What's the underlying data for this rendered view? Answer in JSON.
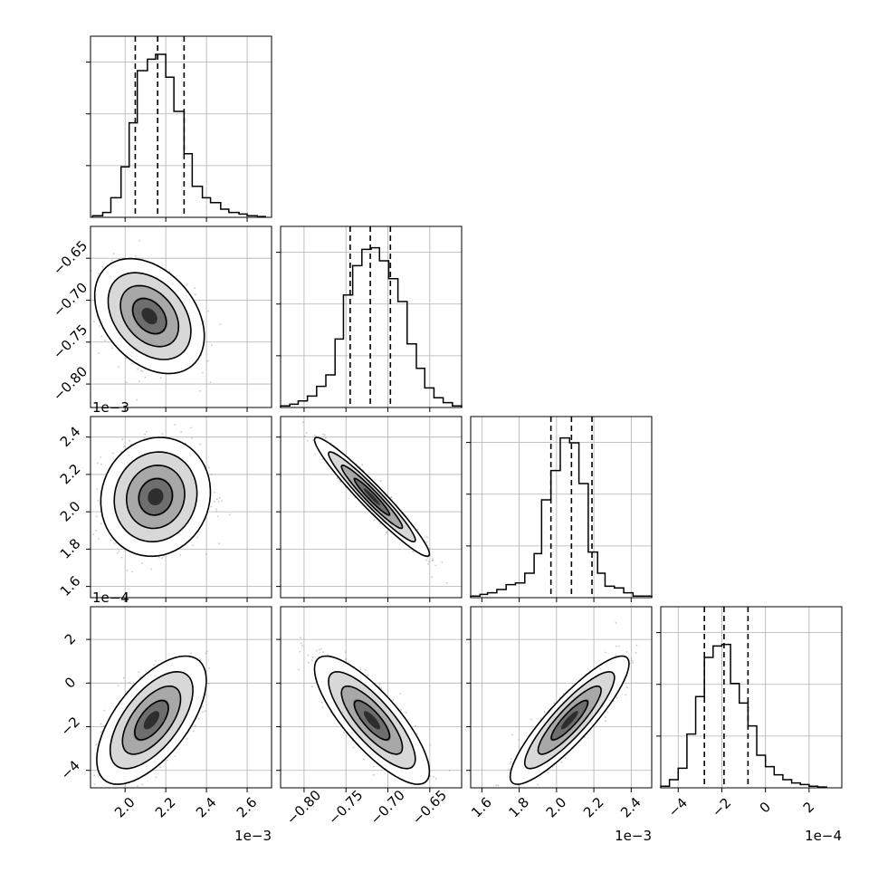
{
  "chart_data": {
    "type": "corner",
    "dims": [
      {
        "range": [
          0.00183,
          0.00272
        ],
        "ticks": [
          0.002,
          0.0022,
          0.0024,
          0.0026
        ],
        "tick_labels": [
          "2.0",
          "2.2",
          "2.4",
          "2.6"
        ],
        "offset": "1e−3",
        "quantiles": [
          0.00205,
          0.00216,
          0.00229
        ],
        "hist": {
          "edges": [
            0.00184,
            0.00189,
            0.00193,
            0.00198,
            0.00202,
            0.00206,
            0.00211,
            0.00215,
            0.0022,
            0.00224,
            0.00229,
            0.00233,
            0.00238,
            0.00242,
            0.00247,
            0.00251,
            0.00256,
            0.0026,
            0.00265,
            0.00269
          ],
          "counts": [
            0.01,
            0.03,
            0.12,
            0.31,
            0.58,
            0.9,
            0.97,
            1.0,
            0.86,
            0.65,
            0.39,
            0.19,
            0.12,
            0.09,
            0.05,
            0.03,
            0.02,
            0.01,
            0.005
          ]
        }
      },
      {
        "range": [
          -0.828,
          -0.612
        ],
        "ticks": [
          -0.8,
          -0.75,
          -0.7,
          -0.65
        ],
        "tick_labels": [
          "−0.80",
          "−0.75",
          "−0.70",
          "−0.65"
        ],
        "offset": "",
        "quantiles": [
          -0.745,
          -0.721,
          -0.697
        ],
        "hist": {
          "edges": [
            -0.828,
            -0.817,
            -0.807,
            -0.796,
            -0.785,
            -0.774,
            -0.763,
            -0.753,
            -0.742,
            -0.731,
            -0.72,
            -0.71,
            -0.699,
            -0.688,
            -0.677,
            -0.666,
            -0.656,
            -0.645,
            -0.634,
            -0.623,
            -0.612
          ],
          "counts": [
            0.01,
            0.02,
            0.04,
            0.07,
            0.13,
            0.2,
            0.42,
            0.69,
            0.87,
            0.97,
            0.98,
            0.9,
            0.79,
            0.65,
            0.39,
            0.24,
            0.12,
            0.06,
            0.03,
            0.01
          ]
        }
      },
      {
        "range": [
          0.00154,
          0.00251
        ],
        "ticks": [
          0.0016,
          0.0018,
          0.002,
          0.0022,
          0.0024
        ],
        "tick_labels": [
          "1.6",
          "1.8",
          "2.0",
          "2.2",
          "2.4"
        ],
        "offset": "1e−3",
        "quantiles": [
          0.00197,
          0.00208,
          0.00219
        ],
        "hist": {
          "edges": [
            0.00154,
            0.00159,
            0.00163,
            0.00168,
            0.00173,
            0.00178,
            0.00183,
            0.00188,
            0.00192,
            0.00197,
            0.00202,
            0.00207,
            0.00212,
            0.00217,
            0.00222,
            0.00226,
            0.00231,
            0.00236,
            0.00241,
            0.00246,
            0.00251
          ],
          "counts": [
            0.01,
            0.02,
            0.03,
            0.05,
            0.08,
            0.09,
            0.15,
            0.27,
            0.6,
            0.78,
            0.98,
            0.95,
            0.7,
            0.28,
            0.15,
            0.07,
            0.06,
            0.03,
            0.01,
            0.01
          ]
        }
      },
      {
        "range": [
          -0.00048,
          0.00035
        ],
        "ticks": [
          -0.0004,
          -0.0002,
          0,
          0.0002
        ],
        "tick_labels": [
          "−4",
          "−2",
          "0",
          "2"
        ],
        "offset": "1e−4",
        "quantiles": [
          -0.00028,
          -0.00019,
          -8e-05
        ],
        "hist": {
          "edges": [
            -0.00048,
            -0.00044,
            -0.0004,
            -0.00036,
            -0.00032,
            -0.00028,
            -0.00024,
            -0.0002,
            -0.00016,
            -0.00012,
            -8e-05,
            -4e-05,
            0.0,
            4e-05,
            8e-05,
            0.00012,
            0.00016,
            0.0002,
            0.00024,
            0.00028
          ],
          "counts": [
            0.01,
            0.05,
            0.12,
            0.33,
            0.56,
            0.8,
            0.87,
            0.88,
            0.64,
            0.52,
            0.38,
            0.2,
            0.13,
            0.08,
            0.05,
            0.03,
            0.02,
            0.01,
            0.005
          ]
        }
      }
    ],
    "pairs": [
      {
        "row": 1,
        "col": 0,
        "mean": [
          0.00212,
          -0.719
        ],
        "sd": [
          0.00011,
          0.028
        ],
        "rho": -0.35
      },
      {
        "row": 2,
        "col": 0,
        "mean": [
          0.00215,
          0.00208
        ],
        "sd": [
          0.00011,
          0.00013
        ],
        "rho": 0.08
      },
      {
        "row": 2,
        "col": 1,
        "mean": [
          -0.719,
          0.00208
        ],
        "sd": [
          0.028,
          0.00013
        ],
        "rho": -0.96
      },
      {
        "row": 3,
        "col": 0,
        "mean": [
          0.00213,
          -0.00017
        ],
        "sd": [
          0.00011,
          0.00012
        ],
        "rho": 0.62
      },
      {
        "row": 3,
        "col": 1,
        "mean": [
          -0.719,
          -0.00017
        ],
        "sd": [
          0.028,
          0.00012
        ],
        "rho": -0.8
      },
      {
        "row": 3,
        "col": 2,
        "mean": [
          0.00207,
          -0.00017
        ],
        "sd": [
          0.00013,
          0.00012
        ],
        "rho": 0.88
      }
    ],
    "grid": true
  }
}
